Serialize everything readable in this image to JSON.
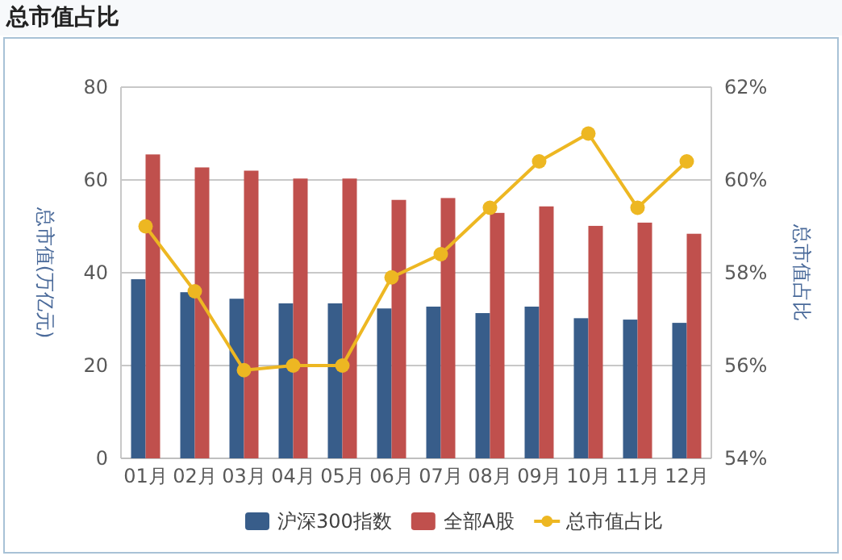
{
  "chart_data": {
    "type": "bar",
    "title": "总市值占比",
    "ylabel": "总市值(万亿元)",
    "y2label": "总市值占比",
    "categories": [
      "01月",
      "02月",
      "03月",
      "04月",
      "05月",
      "06月",
      "07月",
      "08月",
      "09月",
      "10月",
      "11月",
      "12月"
    ],
    "series": [
      {
        "name": "沪深300指数",
        "color": "#385d8a",
        "values": [
          38.6,
          35.8,
          34.4,
          33.4,
          33.4,
          32.3,
          32.7,
          31.3,
          32.7,
          30.2,
          29.9,
          29.2
        ]
      },
      {
        "name": "全部A股",
        "color": "#c0504d",
        "values": [
          65.5,
          62.7,
          62.0,
          60.3,
          60.3,
          55.7,
          56.1,
          52.9,
          54.3,
          50.1,
          50.8,
          48.4
        ]
      },
      {
        "name": "总市值占比",
        "type": "line",
        "axis": "y2",
        "color": "#edb722",
        "marker": "circle",
        "values": [
          59.0,
          57.6,
          55.9,
          56.0,
          56.0,
          57.9,
          58.4,
          59.4,
          60.4,
          61.0,
          59.4,
          60.4
        ]
      }
    ],
    "ylim": [
      0,
      80
    ],
    "yticks": [
      0,
      20,
      40,
      60,
      80
    ],
    "y2lim": [
      54,
      62
    ],
    "y2ticks": [
      {
        "value": 54,
        "label": "54%"
      },
      {
        "value": 56,
        "label": "56%"
      },
      {
        "value": 58,
        "label": "58%"
      },
      {
        "value": 60,
        "label": "60%"
      },
      {
        "value": 62,
        "label": "62%"
      }
    ],
    "grid": "y",
    "legend": "bottom"
  }
}
